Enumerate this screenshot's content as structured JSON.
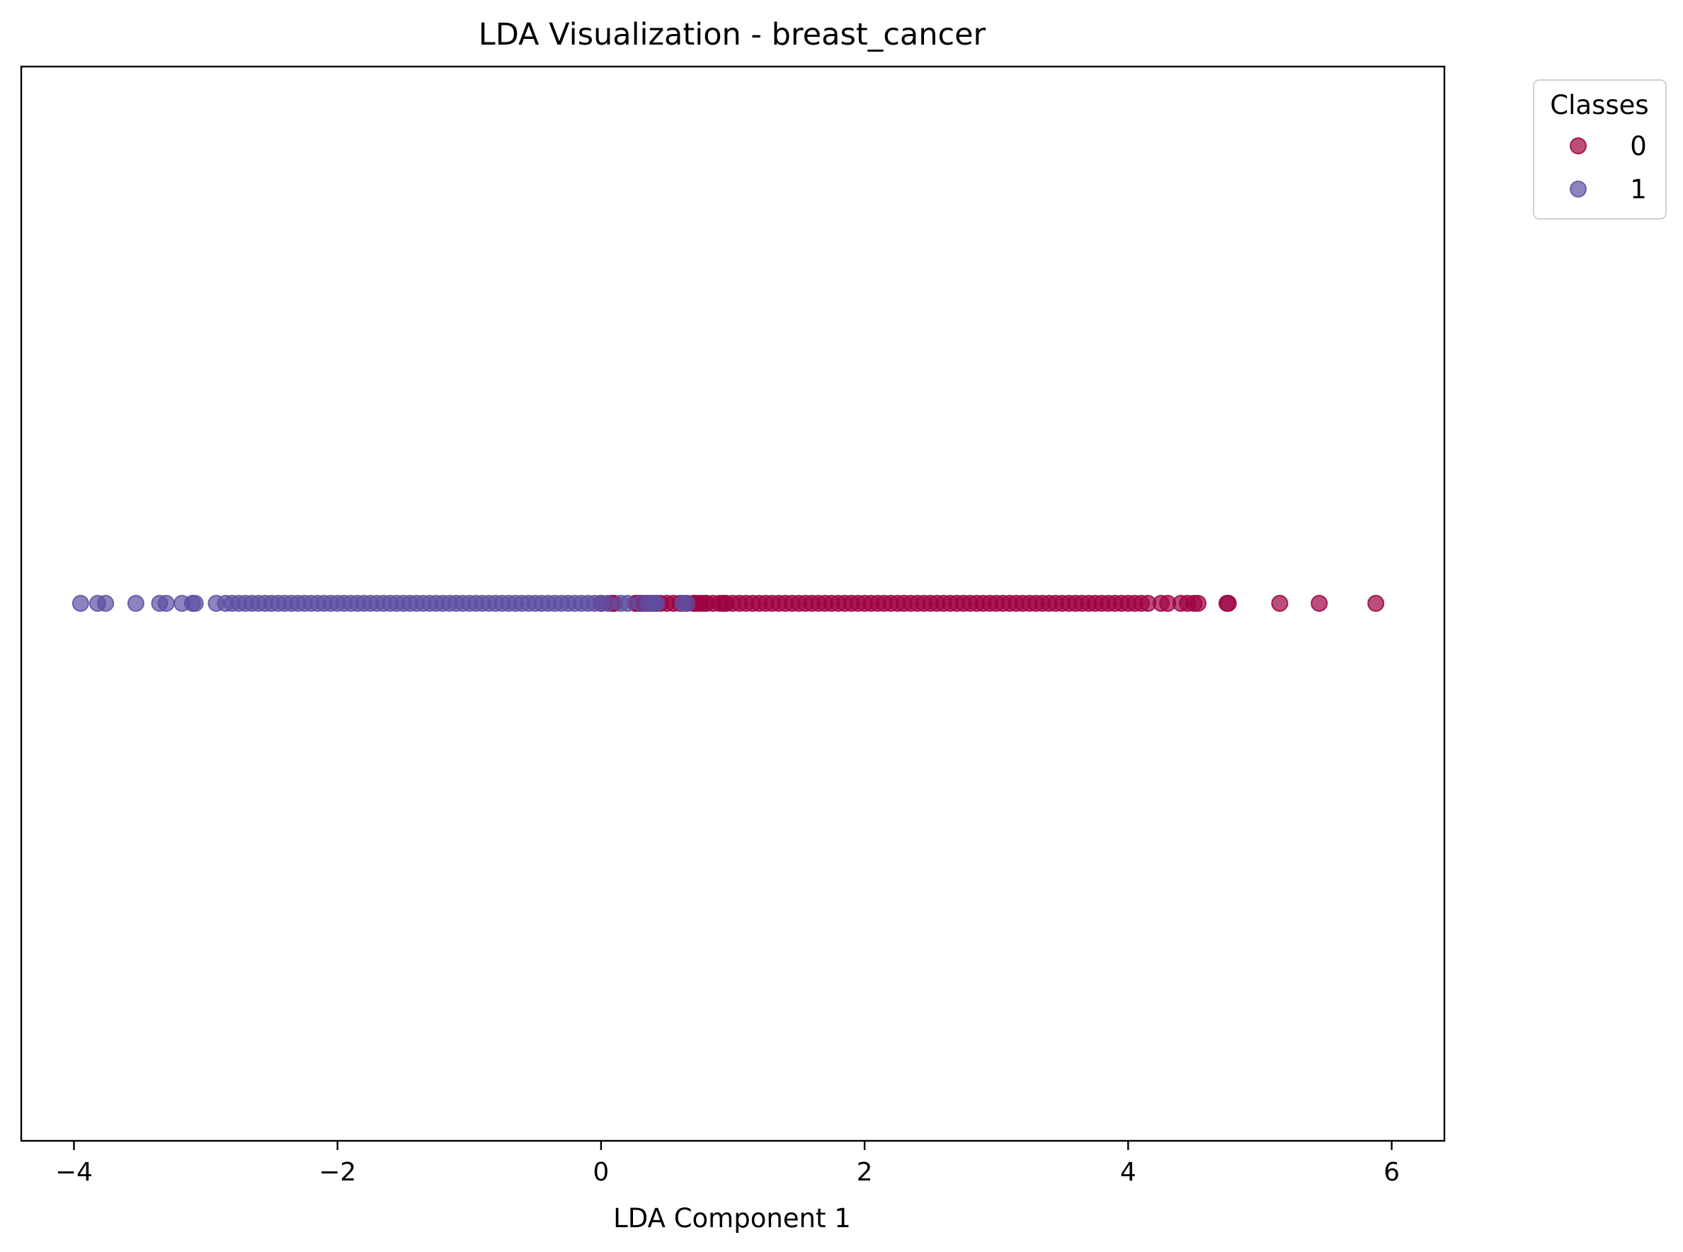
{
  "chart_data": {
    "type": "scatter",
    "title": "LDA Visualization - breast_cancer",
    "xlabel": "LDA Component 1",
    "ylabel": "",
    "xlim": [
      -4.4,
      6.4
    ],
    "x_ticks": [
      -4,
      -2,
      0,
      2,
      4,
      6
    ],
    "x_tick_labels": [
      "−4",
      "−2",
      "0",
      "2",
      "4",
      "6"
    ],
    "y_ticks": [],
    "grid": false,
    "legend": {
      "title": "Classes",
      "position": "outside-top-right"
    },
    "series": [
      {
        "name": "0",
        "color": "#9e0142",
        "alpha": 0.7,
        "x": [
          0.0,
          0.08,
          0.1,
          0.26,
          0.28,
          0.3,
          0.32,
          0.35,
          0.38,
          0.42,
          0.45,
          0.5,
          0.55,
          0.6,
          0.65,
          0.7,
          0.72,
          0.75,
          0.78,
          0.8,
          0.85,
          0.9,
          0.93,
          0.95,
          1.0,
          1.05,
          1.1,
          1.15,
          1.2,
          1.25,
          1.3,
          1.35,
          1.4,
          1.45,
          1.5,
          1.55,
          1.6,
          1.65,
          1.7,
          1.75,
          1.8,
          1.85,
          1.9,
          1.95,
          2.0,
          2.05,
          2.1,
          2.15,
          2.2,
          2.25,
          2.3,
          2.35,
          2.4,
          2.45,
          2.5,
          2.55,
          2.6,
          2.65,
          2.7,
          2.75,
          2.8,
          2.85,
          2.9,
          2.95,
          3.0,
          3.05,
          3.1,
          3.15,
          3.2,
          3.25,
          3.3,
          3.35,
          3.4,
          3.45,
          3.5,
          3.55,
          3.6,
          3.65,
          3.7,
          3.75,
          3.8,
          3.85,
          3.9,
          3.95,
          4.0,
          4.05,
          4.1,
          4.15,
          4.25,
          4.3,
          4.4,
          4.45,
          4.5,
          4.53,
          4.75,
          4.76,
          5.15,
          5.45,
          5.88
        ],
        "y": [
          0,
          0,
          0,
          0,
          0,
          0,
          0,
          0,
          0,
          0,
          0,
          0,
          0,
          0,
          0,
          0,
          0,
          0,
          0,
          0,
          0,
          0,
          0,
          0,
          0,
          0,
          0,
          0,
          0,
          0,
          0,
          0,
          0,
          0,
          0,
          0,
          0,
          0,
          0,
          0,
          0,
          0,
          0,
          0,
          0,
          0,
          0,
          0,
          0,
          0,
          0,
          0,
          0,
          0,
          0,
          0,
          0,
          0,
          0,
          0,
          0,
          0,
          0,
          0,
          0,
          0,
          0,
          0,
          0,
          0,
          0,
          0,
          0,
          0,
          0,
          0,
          0,
          0,
          0,
          0,
          0,
          0,
          0,
          0,
          0,
          0,
          0,
          0,
          0,
          0,
          0,
          0,
          0,
          0,
          0,
          0,
          0,
          0,
          0
        ]
      },
      {
        "name": "1",
        "color": "#5e4fa2",
        "alpha": 0.7,
        "x": [
          -3.95,
          -3.82,
          -3.76,
          -3.53,
          -3.35,
          -3.3,
          -3.18,
          -3.1,
          -3.08,
          -2.92,
          -2.85,
          -2.8,
          -2.75,
          -2.7,
          -2.65,
          -2.6,
          -2.55,
          -2.5,
          -2.45,
          -2.4,
          -2.35,
          -2.3,
          -2.25,
          -2.2,
          -2.15,
          -2.1,
          -2.05,
          -2.0,
          -1.95,
          -1.9,
          -1.85,
          -1.8,
          -1.75,
          -1.7,
          -1.65,
          -1.6,
          -1.55,
          -1.5,
          -1.45,
          -1.4,
          -1.35,
          -1.3,
          -1.25,
          -1.2,
          -1.15,
          -1.1,
          -1.05,
          -1.0,
          -0.95,
          -0.9,
          -0.85,
          -0.8,
          -0.75,
          -0.7,
          -0.65,
          -0.6,
          -0.55,
          -0.5,
          -0.45,
          -0.4,
          -0.35,
          -0.3,
          -0.25,
          -0.2,
          -0.15,
          -0.1,
          -0.05,
          0.0,
          0.05,
          0.15,
          0.2,
          0.3,
          0.36,
          0.4,
          0.42,
          0.62,
          0.65
        ],
        "y": [
          0,
          0,
          0,
          0,
          0,
          0,
          0,
          0,
          0,
          0,
          0,
          0,
          0,
          0,
          0,
          0,
          0,
          0,
          0,
          0,
          0,
          0,
          0,
          0,
          0,
          0,
          0,
          0,
          0,
          0,
          0,
          0,
          0,
          0,
          0,
          0,
          0,
          0,
          0,
          0,
          0,
          0,
          0,
          0,
          0,
          0,
          0,
          0,
          0,
          0,
          0,
          0,
          0,
          0,
          0,
          0,
          0,
          0,
          0,
          0,
          0,
          0,
          0,
          0,
          0,
          0,
          0,
          0,
          0,
          0,
          0,
          0,
          0,
          0,
          0,
          0,
          0
        ]
      }
    ]
  }
}
